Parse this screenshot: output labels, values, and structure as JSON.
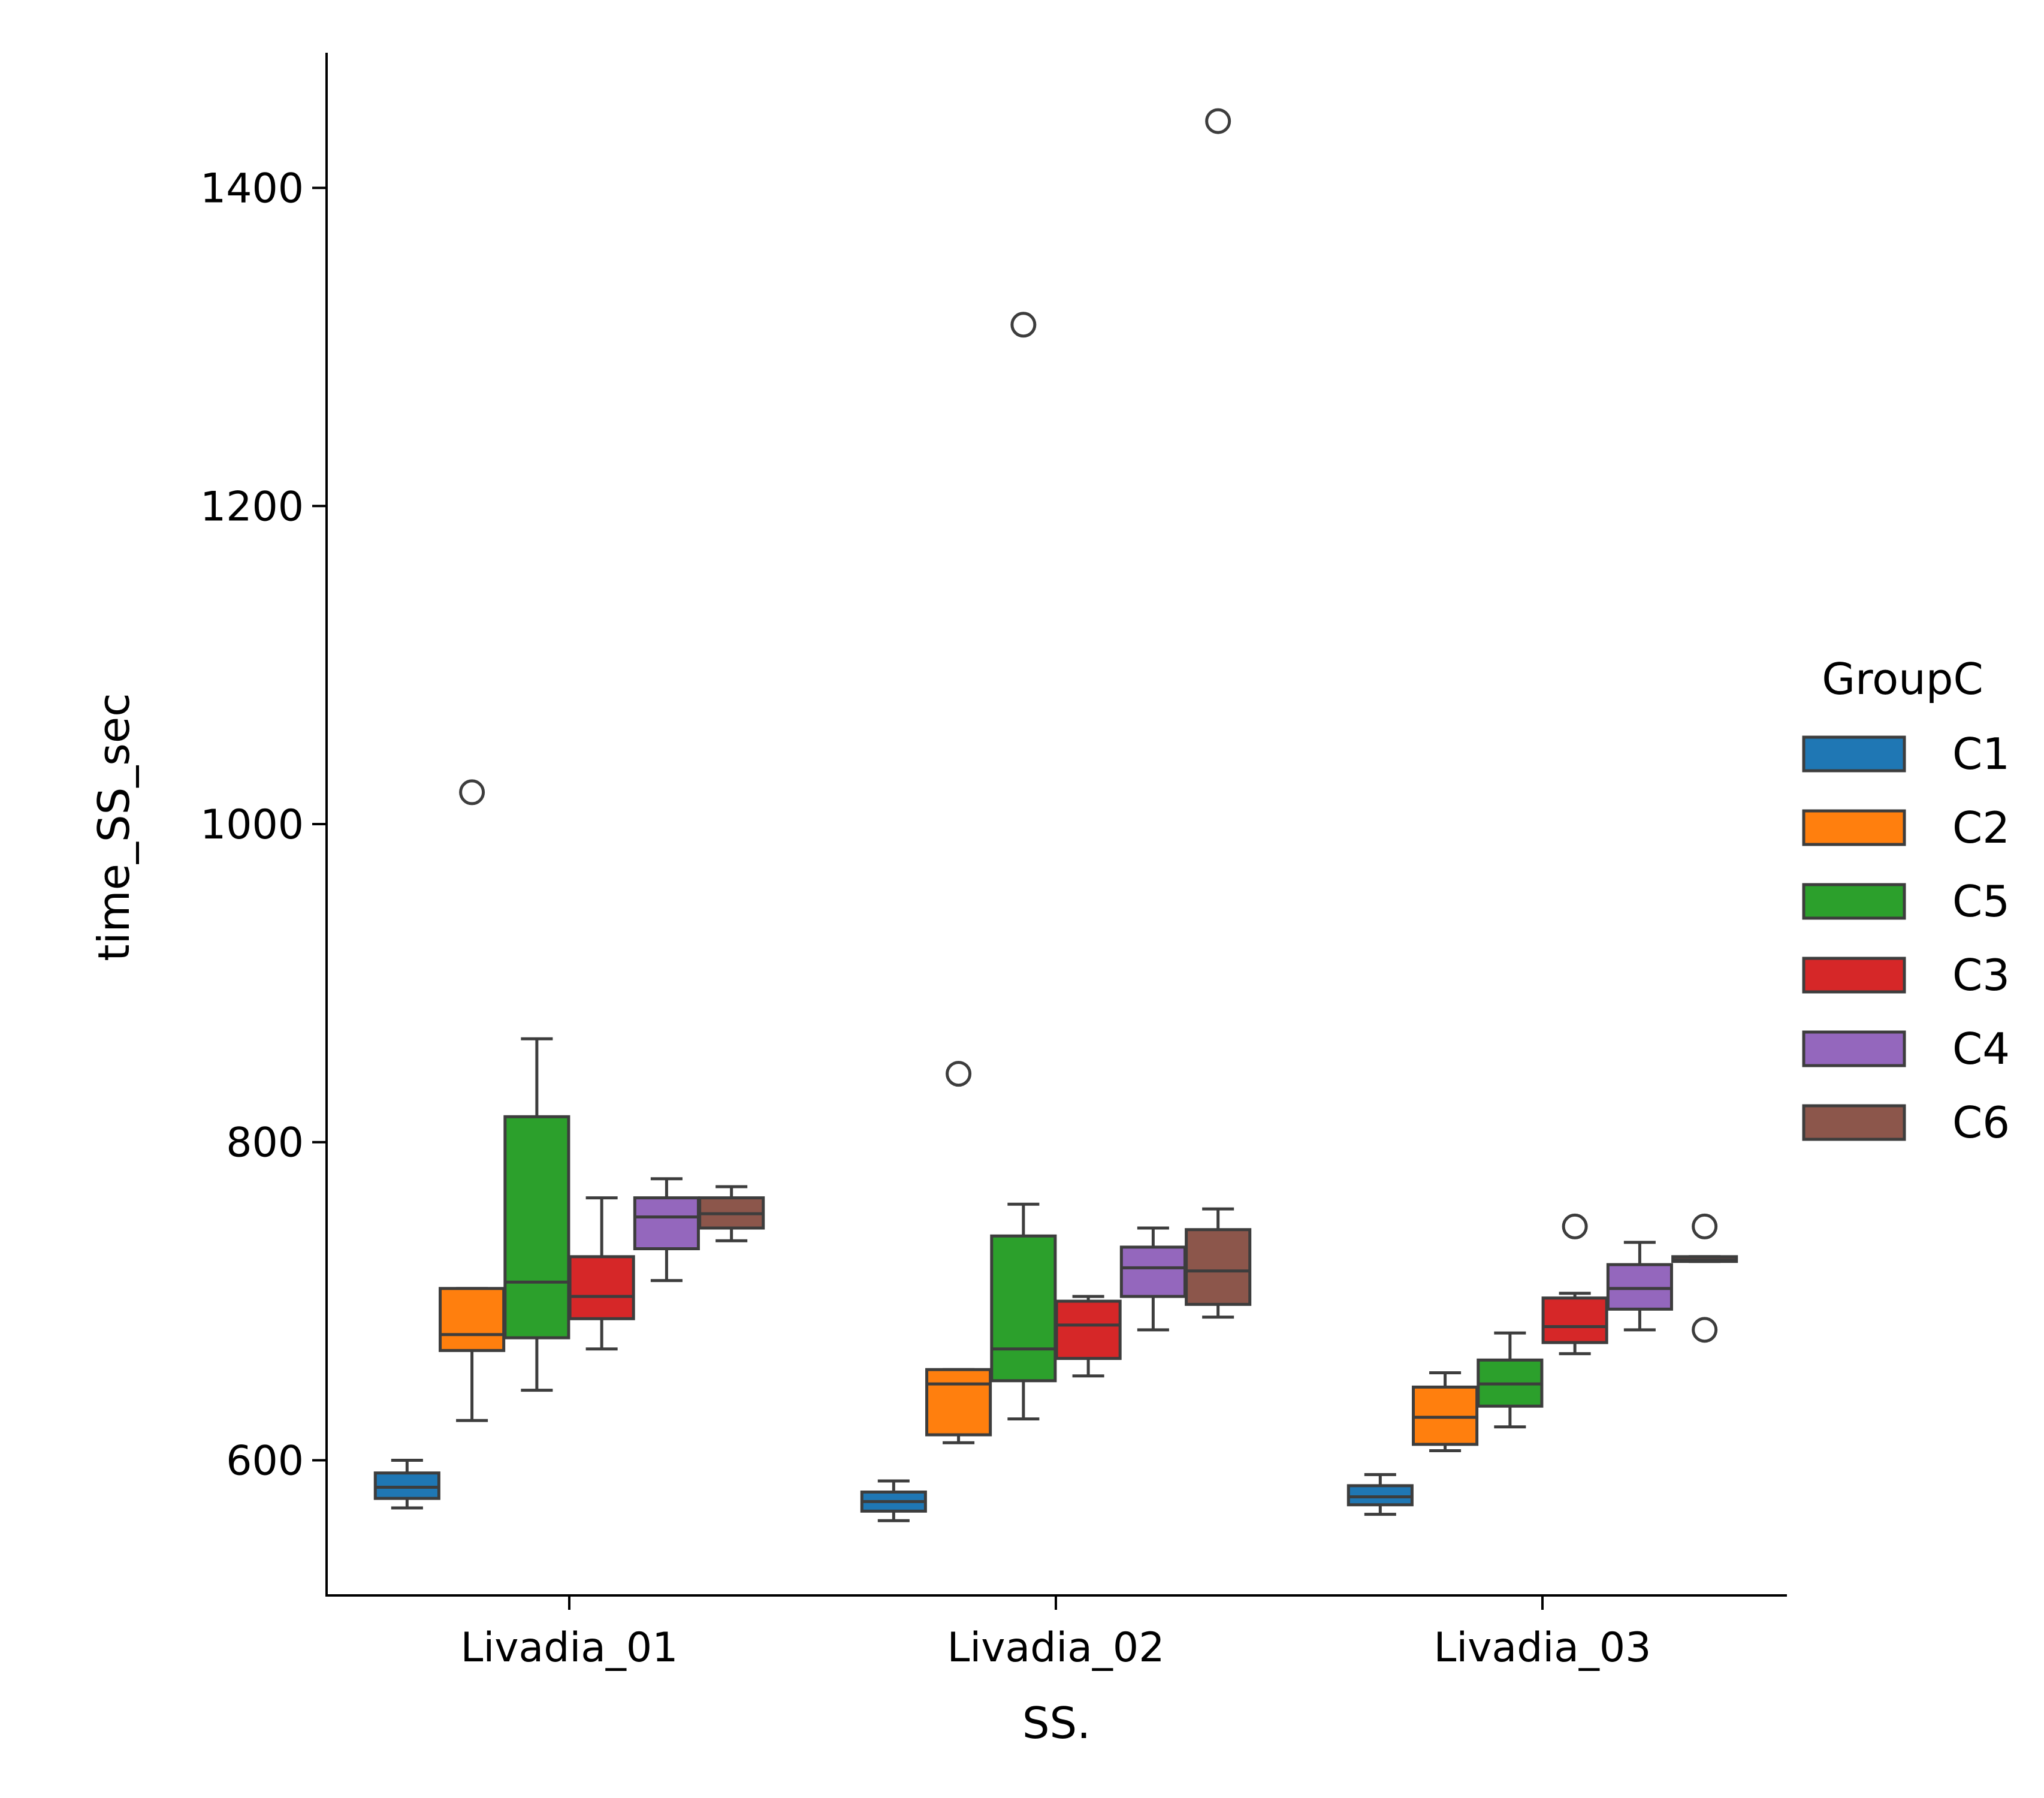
{
  "chart_data": {
    "type": "box",
    "xlabel": "SS.",
    "ylabel": "time_SS_sec",
    "ylim": [
      515,
      1485
    ],
    "yticks": [
      600,
      800,
      1000,
      1200,
      1400
    ],
    "categories": [
      "Livadia_01",
      "Livadia_02",
      "Livadia_03"
    ],
    "legend": {
      "title": "GroupC",
      "position": "right"
    },
    "series": [
      {
        "name": "C1",
        "color": "#1f77b4",
        "boxes": [
          {
            "whislo": 570,
            "q1": 576,
            "med": 583,
            "q3": 592,
            "whishi": 600,
            "fliers": []
          },
          {
            "whislo": 562,
            "q1": 568,
            "med": 574,
            "q3": 580,
            "whishi": 587,
            "fliers": []
          },
          {
            "whislo": 566,
            "q1": 572,
            "med": 577,
            "q3": 584,
            "whishi": 591,
            "fliers": []
          }
        ]
      },
      {
        "name": "C2",
        "color": "#ff7f0e",
        "boxes": [
          {
            "whislo": 625,
            "q1": 669,
            "med": 679,
            "q3": 708,
            "whishi": 708,
            "fliers": [
              1020
            ]
          },
          {
            "whislo": 611,
            "q1": 616,
            "med": 648,
            "q3": 657,
            "whishi": 657,
            "fliers": [
              843
            ]
          },
          {
            "whislo": 606,
            "q1": 610,
            "med": 627,
            "q3": 646,
            "whishi": 655,
            "fliers": []
          }
        ]
      },
      {
        "name": "C5",
        "color": "#2ca02c",
        "boxes": [
          {
            "whislo": 644,
            "q1": 677,
            "med": 712,
            "q3": 816,
            "whishi": 865,
            "fliers": []
          },
          {
            "whislo": 626,
            "q1": 650,
            "med": 670,
            "q3": 741,
            "whishi": 761,
            "fliers": [
              1314
            ]
          },
          {
            "whislo": 621,
            "q1": 634,
            "med": 648,
            "q3": 663,
            "whishi": 680,
            "fliers": []
          }
        ]
      },
      {
        "name": "C3",
        "color": "#d62728",
        "boxes": [
          {
            "whislo": 670,
            "q1": 689,
            "med": 703,
            "q3": 728,
            "whishi": 765,
            "fliers": []
          },
          {
            "whislo": 653,
            "q1": 664,
            "med": 685,
            "q3": 700,
            "whishi": 703,
            "fliers": []
          },
          {
            "whislo": 667,
            "q1": 674,
            "med": 684,
            "q3": 702,
            "whishi": 705,
            "fliers": [
              747
            ]
          }
        ]
      },
      {
        "name": "C4",
        "color": "#9467bd",
        "boxes": [
          {
            "whislo": 713,
            "q1": 733,
            "med": 753,
            "q3": 765,
            "whishi": 777,
            "fliers": []
          },
          {
            "whislo": 682,
            "q1": 703,
            "med": 721,
            "q3": 734,
            "whishi": 746,
            "fliers": []
          },
          {
            "whislo": 682,
            "q1": 695,
            "med": 708,
            "q3": 723,
            "whishi": 737,
            "fliers": []
          }
        ]
      },
      {
        "name": "C6",
        "color": "#8c564b",
        "boxes": [
          {
            "whislo": 738,
            "q1": 746,
            "med": 755,
            "q3": 765,
            "whishi": 772,
            "fliers": []
          },
          {
            "whislo": 690,
            "q1": 698,
            "med": 719,
            "q3": 745,
            "whishi": 758,
            "fliers": [
              1442
            ]
          },
          {
            "whislo": 725,
            "q1": 725,
            "med": 726,
            "q3": 728,
            "whishi": 728,
            "fliers": [
              747,
              682
            ]
          }
        ]
      }
    ]
  }
}
